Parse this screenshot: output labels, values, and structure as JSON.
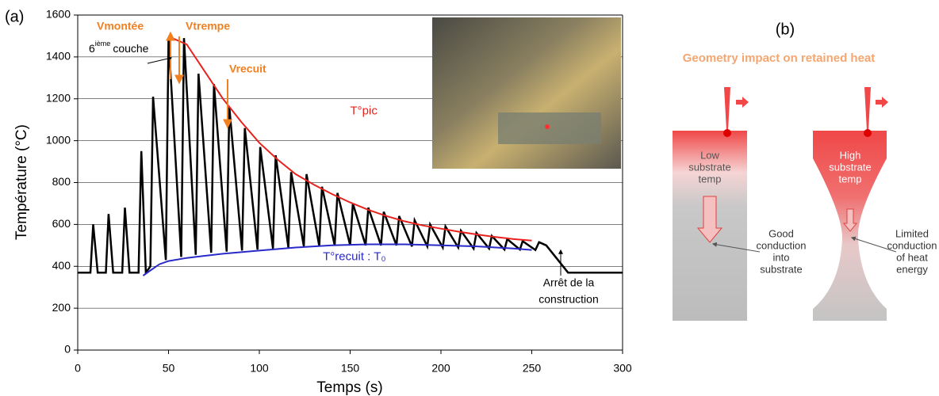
{
  "chart_data": {
    "type": "line",
    "panel_label": "(a)",
    "ylabel": "Température (°C)",
    "xlabel": "Temps (s)",
    "xlim": [
      0,
      300
    ],
    "xticks": [
      0,
      50,
      100,
      150,
      200,
      250,
      300
    ],
    "ylim": [
      0,
      1600
    ],
    "yticks": [
      0,
      200,
      400,
      600,
      800,
      1000,
      1200,
      1400,
      1600
    ],
    "grid": true,
    "series": [
      {
        "color": "#000000",
        "x": [
          0,
          7,
          8.5,
          11,
          15.5,
          17,
          19.5,
          24.5,
          26,
          28.5,
          33.5,
          35,
          37.5,
          40,
          41.5,
          48.5,
          50,
          57,
          58.5,
          65,
          66.5,
          73.5,
          75,
          82,
          83.5,
          90.5,
          92,
          99,
          100.5,
          107.5,
          109,
          116,
          117.5,
          124.5,
          126,
          133,
          134.5,
          141.5,
          143,
          150,
          151.5,
          158.5,
          160,
          167,
          168.5,
          175.5,
          177,
          184,
          185.5,
          192.5,
          194,
          201,
          202.5,
          209.5,
          211,
          218,
          219.5,
          226.5,
          228,
          235,
          236.5,
          243.5,
          245,
          252,
          254,
          258,
          270,
          300
        ],
        "values": [
          370,
          370,
          600,
          370,
          370,
          650,
          370,
          370,
          680,
          370,
          370,
          950,
          370,
          400,
          1210,
          430,
          1490,
          445,
          1490,
          455,
          1320,
          465,
          1270,
          470,
          1160,
          475,
          1060,
          480,
          970,
          485,
          930,
          490,
          850,
          495,
          840,
          495,
          780,
          500,
          750,
          500,
          700,
          500,
          680,
          500,
          660,
          500,
          640,
          495,
          620,
          495,
          600,
          490,
          590,
          490,
          570,
          485,
          560,
          485,
          545,
          480,
          530,
          480,
          520,
          478,
          515,
          500,
          370,
          370
        ]
      },
      {
        "name": "T°pic",
        "color": "#e8231e",
        "x": [
          52,
          60,
          70,
          80,
          90,
          100,
          110,
          120,
          130,
          140,
          150,
          160,
          170,
          180,
          190,
          200,
          210,
          220,
          230,
          240,
          250
        ],
        "values": [
          1490,
          1460,
          1330,
          1200,
          1090,
          990,
          910,
          840,
          790,
          745,
          705,
          670,
          640,
          615,
          595,
          580,
          565,
          552,
          540,
          530,
          523
        ]
      },
      {
        "name": "T°recuit : T₀",
        "color": "#2a2ac8",
        "x": [
          36,
          40,
          45,
          50,
          60,
          70,
          80,
          100,
          120,
          140,
          160,
          180,
          200,
          220,
          240,
          250
        ],
        "values": [
          355,
          380,
          410,
          425,
          440,
          450,
          460,
          475,
          490,
          500,
          505,
          505,
          500,
          495,
          485,
          478
        ]
      }
    ],
    "annotations": {
      "vmontee": "Vmontée",
      "vtrempe": "Vtrempe",
      "vrecuit": "Vrecuit",
      "layer": {
        "number": "6",
        "superscript": "ième",
        "text": "couche"
      },
      "stop": [
        "Arrêt de la",
        "construction"
      ]
    }
  },
  "panel_b": {
    "label": "(b)",
    "title": "Geometry impact on retained heat",
    "left": {
      "state": [
        "Low",
        "substrate",
        "temp"
      ],
      "note": [
        "Good",
        "conduction",
        "into",
        "substrate"
      ]
    },
    "right": {
      "state": [
        "High",
        "substrate",
        "temp"
      ],
      "note": [
        "Limited",
        "conduction",
        "of heat",
        "energy"
      ]
    }
  }
}
